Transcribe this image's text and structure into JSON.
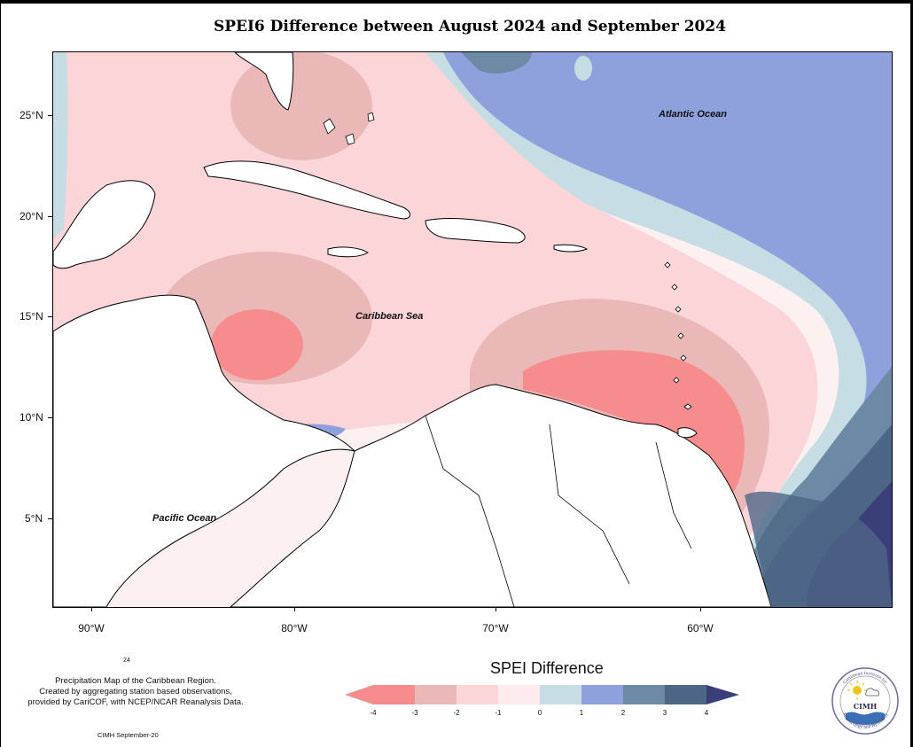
{
  "title": "SPEI6 Difference between August 2024 and September 2024",
  "map": {
    "lat_labels": [
      "25°N",
      "20°N",
      "15°N",
      "10°N",
      "5°N"
    ],
    "lon_labels": [
      "90°W",
      "80°W",
      "70°W",
      "60°W"
    ],
    "ocean_labels": {
      "atlantic": "Atlantic Ocean",
      "caribbean": "Caribbean Sea",
      "pacific": "Pacific Ocean"
    },
    "colors": {
      "land": "#ffffff",
      "neutral": "#fce8e8",
      "dry1": "#fcd5d9",
      "dry2": "#ebb8b8",
      "dry3": "#f78c8f",
      "wet1": "#c6dde4",
      "wet2": "#8fa1dc",
      "wet3": "#6c8aa6",
      "wet4": "#4e6685",
      "wet5": "#3a3f79"
    }
  },
  "footer": {
    "small_number": "24",
    "description": [
      "Precipitation Map of the Caribbean Region.",
      "Created by aggregating station based observations,",
      "provided by CariCOF, with NCEP/NCAR Reanalysis Data."
    ],
    "credit": "CIMH September-20"
  },
  "legend": {
    "title": "SPEI Difference",
    "labels": [
      "-4",
      "-3",
      "-2",
      "-1",
      "0",
      "1",
      "2",
      "3",
      "4"
    ],
    "colors": [
      "#f78c8f",
      "#ebb8b8",
      "#fcd5d9",
      "#fdebee",
      "#c6dde4",
      "#8fa1dc",
      "#6c8aa6",
      "#4e6685",
      "#3a3f79"
    ]
  },
  "logo": {
    "top_text": "Caribbean Institute for",
    "bottom_text": "Meteorology and Hydrology",
    "abbr": "CIMH"
  }
}
